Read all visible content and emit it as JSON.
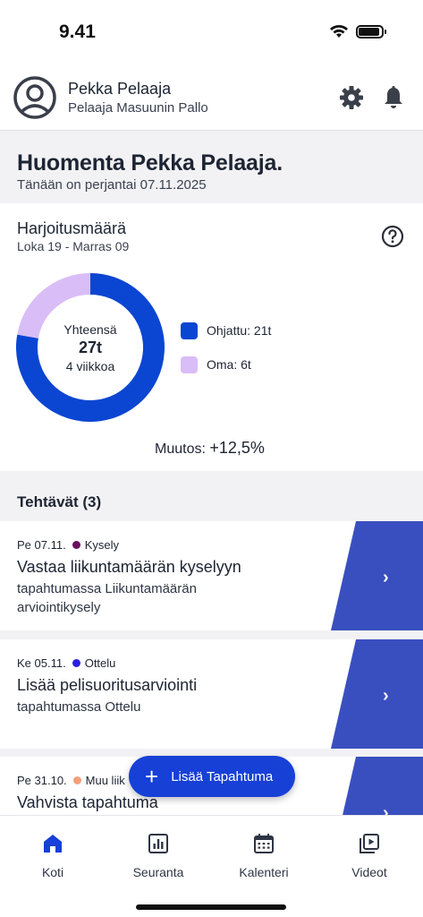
{
  "status_bar": {
    "time": "9.41"
  },
  "profile": {
    "name": "Pekka Pelaaja",
    "team": "Pelaaja Masuunin Pallo"
  },
  "greeting": {
    "title": "Huomenta Pekka Pelaaja.",
    "date": "Tänään on perjantai 07.11.2025"
  },
  "stats": {
    "title": "Harjoitusmäärä",
    "range": "Loka 19 - Marras 09",
    "center_label": "Yhteensä",
    "center_value": "27t",
    "center_sub": "4 viikkoa",
    "legend": [
      {
        "label": "Ohjattu: 21t",
        "color": "#0b46d2"
      },
      {
        "label": "Oma: 6t",
        "color": "#d9bdf7"
      }
    ],
    "change_label": "Muutos:",
    "change_value": "+12,5%"
  },
  "chart_data": {
    "type": "pie",
    "categories": [
      "Ohjattu",
      "Oma"
    ],
    "values": [
      21,
      6
    ],
    "colors": [
      "#0b46d2",
      "#d9bdf7"
    ]
  },
  "tasks": {
    "title": "Tehtävät (3)",
    "items": [
      {
        "date": "Pe 07.11.",
        "type": "Kysely",
        "type_color": "#6a0f5e",
        "title": "Vastaa liikuntamäärän kyselyyn",
        "description": "tapahtumassa Liikuntamäärän arviointikysely"
      },
      {
        "date": "Ke 05.11.",
        "type": "Ottelu",
        "type_color": "#2a1fe0",
        "title": "Lisää pelisuoritusarviointi",
        "description": "tapahtumassa Ottelu"
      },
      {
        "date": "Pe 31.10.",
        "type": "Muu liik",
        "type_color": "#f3a07a",
        "title": "Vahvista tapahtuma",
        "description": ""
      }
    ]
  },
  "fab": {
    "label": "Lisää Tapahtuma"
  },
  "tabs": [
    {
      "label": "Koti",
      "icon": "home-icon",
      "active": true
    },
    {
      "label": "Seuranta",
      "icon": "chart-icon",
      "active": false
    },
    {
      "label": "Kalenteri",
      "icon": "calendar-icon",
      "active": false
    },
    {
      "label": "Videot",
      "icon": "video-library-icon",
      "active": false
    }
  ],
  "colors": {
    "accent": "#1740d6",
    "task_panel": "#3a4fbf",
    "background": "#f2f2f4"
  }
}
